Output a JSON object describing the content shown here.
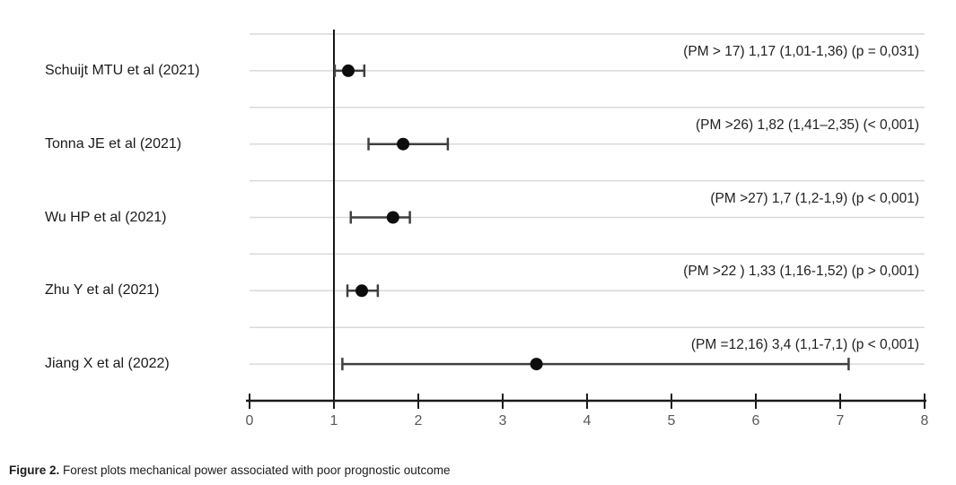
{
  "figure": {
    "caption_label": "Figure 2.",
    "caption_text": " Forest plots mechanical power associated with poor prognostic outcome"
  },
  "chart_data": {
    "type": "scatter",
    "variant": "forest-plot",
    "title": "",
    "xlabel": "",
    "ylabel": "",
    "xlim": [
      0,
      8
    ],
    "x_ticks": [
      "0",
      "1",
      "2",
      "3",
      "4",
      "5",
      "6",
      "7",
      "8"
    ],
    "reference_line_x": 1,
    "grid": true,
    "legend": false,
    "studies": [
      {
        "label": "Schuijt MTU et al (2021)",
        "estimate": 1.17,
        "ci_low": 1.01,
        "ci_high": 1.36,
        "annotation": "(PM > 17) 1,17 (1,01-1,36) (p = 0,031)"
      },
      {
        "label": "Tonna JE et al (2021)",
        "estimate": 1.82,
        "ci_low": 1.41,
        "ci_high": 2.35,
        "annotation": "(PM >26) 1,82 (1,41–2,35) (< 0,001)"
      },
      {
        "label": "Wu HP et al (2021)",
        "estimate": 1.7,
        "ci_low": 1.2,
        "ci_high": 1.9,
        "annotation": "(PM >27) 1,7 (1,2-1,9) (p < 0,001)"
      },
      {
        "label": "Zhu Y et al (2021)",
        "estimate": 1.33,
        "ci_low": 1.16,
        "ci_high": 1.52,
        "annotation": "(PM >22 ) 1,33 (1,16-1,52) (p > 0,001)"
      },
      {
        "label": "Jiang X et al (2022)",
        "estimate": 3.4,
        "ci_low": 1.1,
        "ci_high": 7.1,
        "annotation": "(PM =12,16) 3,4 (1,1-7,1) (p < 0,001)"
      }
    ],
    "colors": {
      "gridline": "#d9d9d9",
      "axis": "#1a1a1a",
      "reference_line": "#161616",
      "ci_bar": "#404040",
      "point": "#0d0d0d",
      "tick_label": "#595959",
      "text": "#1a1a1a"
    }
  }
}
